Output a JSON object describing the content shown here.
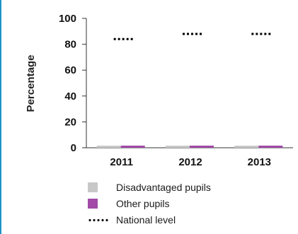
{
  "chart_data": {
    "type": "bar",
    "categories": [
      "2011",
      "2012",
      "2013"
    ],
    "series": [
      {
        "name": "Disadvantaged pupils",
        "values": [
          0,
          0,
          0
        ],
        "color": "#c8c8c8"
      },
      {
        "name": "Other pupils",
        "values": [
          0,
          0,
          0
        ],
        "color": "#a14aa8"
      }
    ],
    "national_level": {
      "name": "National level",
      "values": [
        84,
        88,
        88
      ]
    },
    "ylabel": "Percentage",
    "xlabel": "",
    "ylim": [
      0,
      100
    ],
    "yticks": [
      0,
      20,
      40,
      60,
      80,
      100
    ],
    "grid": false,
    "legend_position": "bottom"
  },
  "legend": {
    "items": [
      {
        "label": "Disadvantaged pupils",
        "color": "#c8c8c8"
      },
      {
        "label": "Other pupils",
        "color": "#a14aa8"
      },
      {
        "label": "National level"
      }
    ]
  }
}
